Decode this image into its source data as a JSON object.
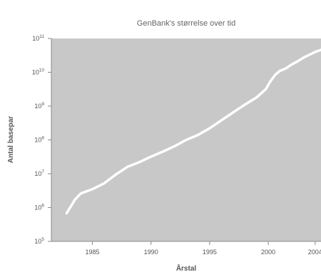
{
  "chart_data": {
    "type": "line",
    "title": "GenBank's størrelse over tid",
    "xlabel": "Årstal",
    "ylabel": "Antal basepar",
    "scale_y": "log",
    "xlim": [
      1981.5,
      2004.5
    ],
    "ylim": [
      100000,
      100000000000
    ],
    "x_ticks": [
      1985,
      1990,
      1995,
      2000,
      2004
    ],
    "x_tick_labels": [
      "1985",
      "1990",
      "1995",
      "2000",
      "2004"
    ],
    "y_ticks": [
      100000,
      1000000,
      10000000,
      100000000,
      1000000000,
      10000000000,
      100000000000
    ],
    "y_tick_labels": [
      {
        "base": "10",
        "exp": "5"
      },
      {
        "base": "10",
        "exp": "6"
      },
      {
        "base": "10",
        "exp": "7"
      },
      {
        "base": "10",
        "exp": "8"
      },
      {
        "base": "10",
        "exp": "9"
      },
      {
        "base": "10",
        "exp": "10"
      },
      {
        "base": "10",
        "exp": "11"
      }
    ],
    "grid": false,
    "legend": "none",
    "background_color": "#c8c8c8",
    "line_color": "#ffffff",
    "series": [
      {
        "x": [
          1982.8,
          1983.5,
          1984.0,
          1985.0,
          1986.0,
          1987.0,
          1988.0,
          1989.0,
          1990.0,
          1991.0,
          1992.0,
          1993.0,
          1994.0,
          1995.0,
          1996.0,
          1997.0,
          1998.0,
          1999.0,
          1999.8,
          2000.2,
          2000.6,
          2001.0,
          2001.5,
          2002.0,
          2002.5,
          2003.0,
          2003.5,
          2004.0,
          2004.5
        ],
        "y": [
          680000,
          1700000,
          2600000,
          3500000,
          5200000,
          9500000,
          16000000,
          22000000,
          32000000,
          45000000,
          65000000,
          100000000,
          140000000,
          220000000,
          380000000,
          650000000,
          1100000000,
          1800000000,
          3200000000,
          5500000000,
          8500000000,
          11000000000,
          13000000000,
          17000000000,
          21000000000,
          27000000000,
          33000000000,
          40000000000,
          46000000000
        ]
      }
    ]
  }
}
